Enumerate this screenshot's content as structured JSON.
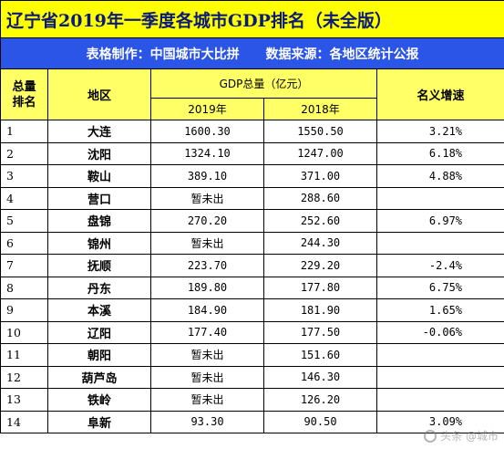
{
  "title": "辽宁省2019年一季度各城市GDP排名（未全版）",
  "subtitle": {
    "maker": "表格制作：中国城市大比拼",
    "source": "数据来源：各地区统计公报"
  },
  "headers": {
    "rank": "总量排名",
    "region": "地区",
    "gdp_total": "GDP总量（亿元）",
    "year_2019": "2019年",
    "year_2018": "2018年",
    "growth": "名义增速"
  },
  "rows": [
    {
      "rank": "1",
      "city": "大连",
      "gdp2019": "1600.30",
      "gdp2018": "1550.50",
      "growth": "3.21%"
    },
    {
      "rank": "2",
      "city": "沈阳",
      "gdp2019": "1324.10",
      "gdp2018": "1247.00",
      "growth": "6.18%"
    },
    {
      "rank": "3",
      "city": "鞍山",
      "gdp2019": "389.10",
      "gdp2018": "371.00",
      "growth": "4.88%"
    },
    {
      "rank": "4",
      "city": "营口",
      "gdp2019": "暂未出",
      "gdp2018": "288.60",
      "growth": ""
    },
    {
      "rank": "5",
      "city": "盘锦",
      "gdp2019": "270.20",
      "gdp2018": "252.60",
      "growth": "6.97%"
    },
    {
      "rank": "6",
      "city": "锦州",
      "gdp2019": "暂未出",
      "gdp2018": "244.30",
      "growth": ""
    },
    {
      "rank": "7",
      "city": "抚顺",
      "gdp2019": "223.70",
      "gdp2018": "229.20",
      "growth": "-2.4%"
    },
    {
      "rank": "8",
      "city": "丹东",
      "gdp2019": "189.80",
      "gdp2018": "177.80",
      "growth": "6.75%"
    },
    {
      "rank": "9",
      "city": "本溪",
      "gdp2019": "184.90",
      "gdp2018": "181.90",
      "growth": "1.65%"
    },
    {
      "rank": "10",
      "city": "辽阳",
      "gdp2019": "177.40",
      "gdp2018": "177.50",
      "growth": "-0.06%"
    },
    {
      "rank": "11",
      "city": "朝阳",
      "gdp2019": "暂未出",
      "gdp2018": "151.60",
      "growth": ""
    },
    {
      "rank": "12",
      "city": "葫芦岛",
      "gdp2019": "暂未出",
      "gdp2018": "146.30",
      "growth": ""
    },
    {
      "rank": "13",
      "city": "铁岭",
      "gdp2019": "暂未出",
      "gdp2018": "126.20",
      "growth": ""
    },
    {
      "rank": "14",
      "city": "阜新",
      "gdp2019": "93.30",
      "gdp2018": "90.50",
      "growth": "3.09%"
    }
  ],
  "watermark": "头条 @城市",
  "colors": {
    "title_bg": "#ffff00",
    "title_text": "#0a1a7a",
    "subtitle_bg": "#2a55e6",
    "header_bg": "#ffff66"
  }
}
